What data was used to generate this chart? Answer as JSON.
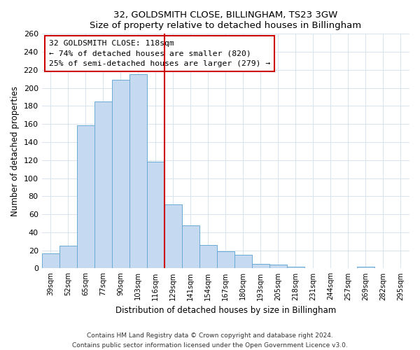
{
  "title": "32, GOLDSMITH CLOSE, BILLINGHAM, TS23 3GW",
  "subtitle": "Size of property relative to detached houses in Billingham",
  "xlabel": "Distribution of detached houses by size in Billingham",
  "ylabel": "Number of detached properties",
  "categories": [
    "39sqm",
    "52sqm",
    "65sqm",
    "77sqm",
    "90sqm",
    "103sqm",
    "116sqm",
    "129sqm",
    "141sqm",
    "154sqm",
    "167sqm",
    "180sqm",
    "193sqm",
    "205sqm",
    "218sqm",
    "231sqm",
    "244sqm",
    "257sqm",
    "269sqm",
    "282sqm",
    "295sqm"
  ],
  "values": [
    17,
    25,
    159,
    185,
    209,
    215,
    118,
    71,
    48,
    26,
    19,
    15,
    5,
    4,
    2,
    0,
    0,
    0,
    2,
    0,
    0
  ],
  "bar_color": "#c5d9f0",
  "bar_edge_color": "#6aaad4",
  "highlight_index": 6,
  "highlight_line_color": "#cc0000",
  "ylim": [
    0,
    260
  ],
  "yticks": [
    0,
    20,
    40,
    60,
    80,
    100,
    120,
    140,
    160,
    180,
    200,
    220,
    240,
    260
  ],
  "annotation_title": "32 GOLDSMITH CLOSE: 118sqm",
  "annotation_line1": "← 74% of detached houses are smaller (820)",
  "annotation_line2": "25% of semi-detached houses are larger (279) →",
  "footer1": "Contains HM Land Registry data © Crown copyright and database right 2024.",
  "footer2": "Contains public sector information licensed under the Open Government Licence v3.0.",
  "background_color": "#ffffff",
  "grid_color": "#d8e4f0"
}
